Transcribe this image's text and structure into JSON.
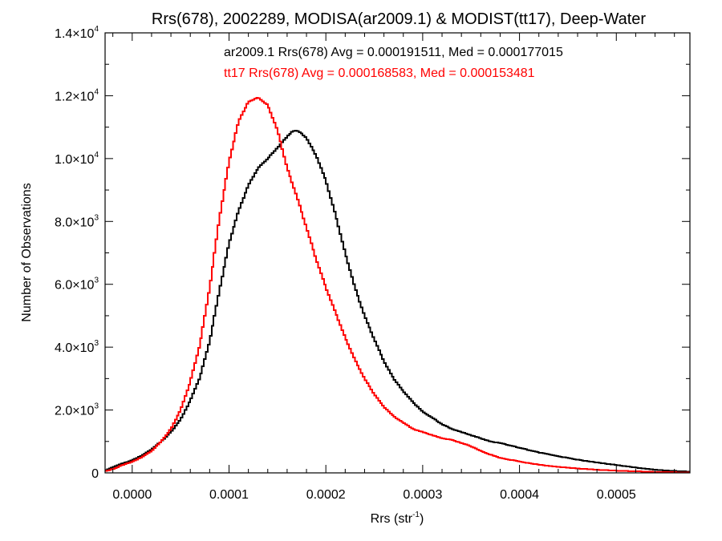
{
  "chart_data": {
    "type": "line",
    "title": "Rrs(678), 2002289, MODISA(ar2009.1) & MODIST(tt17), Deep-Water",
    "xlabel": "Rrs (str",
    "xlabel_sup": "-1",
    "xlabel_end": ")",
    "ylabel": "Number of Observations",
    "xlim": [
      -2.8e-05,
      0.000576
    ],
    "ylim": [
      0,
      14000
    ],
    "x_ticks": [
      {
        "value": 0.0,
        "label": "0.0000"
      },
      {
        "value": 0.0001,
        "label": "0.0001"
      },
      {
        "value": 0.0002,
        "label": "0.0002"
      },
      {
        "value": 0.0003,
        "label": "0.0003"
      },
      {
        "value": 0.0004,
        "label": "0.0004"
      },
      {
        "value": 0.0005,
        "label": "0.0005"
      }
    ],
    "y_ticks": [
      {
        "value": 0,
        "label": "0",
        "sup": ""
      },
      {
        "value": 2000,
        "label": "2.0×10",
        "sup": "3"
      },
      {
        "value": 4000,
        "label": "4.0×10",
        "sup": "3"
      },
      {
        "value": 6000,
        "label": "6.0×10",
        "sup": "3"
      },
      {
        "value": 8000,
        "label": "8.0×10",
        "sup": "3"
      },
      {
        "value": 10000,
        "label": "1.0×10",
        "sup": "4"
      },
      {
        "value": 12000,
        "label": "1.2×10",
        "sup": "4"
      },
      {
        "value": 14000,
        "label": "1.4×10",
        "sup": "4"
      }
    ],
    "x_minor_step": 2e-05,
    "y_minor_step": 1000,
    "grid": false,
    "legend_position": "top",
    "series": [
      {
        "name": "ar2009.1 Rrs(678) Avg = 0.000191511, Med = 0.000177015",
        "color": "#000000",
        "x": [
          -2.8e-05,
          -2e-05,
          -1e-05,
          0.0,
          1e-05,
          2e-05,
          3e-05,
          4e-05,
          5e-05,
          6e-05,
          7e-05,
          8e-05,
          9e-05,
          0.0001,
          0.00011,
          0.00012,
          0.00013,
          0.00014,
          0.00015,
          0.00016,
          0.000165,
          0.00017,
          0.000175,
          0.00018,
          0.00019,
          0.0002,
          0.00021,
          0.00022,
          0.00023,
          0.00024,
          0.00025,
          0.00026,
          0.00027,
          0.00028,
          0.00029,
          0.0003,
          0.00031,
          0.00032,
          0.00033,
          0.00034,
          0.00035,
          0.00036,
          0.00037,
          0.00038,
          0.0004,
          0.00042,
          0.00044,
          0.00046,
          0.00048,
          0.0005,
          0.00052,
          0.00054,
          0.00056,
          0.000576
        ],
        "y": [
          80,
          180,
          300,
          400,
          550,
          750,
          1000,
          1300,
          1700,
          2300,
          3050,
          4200,
          5800,
          7300,
          8350,
          9150,
          9700,
          10000,
          10350,
          10700,
          10850,
          10900,
          10800,
          10650,
          10100,
          9300,
          8200,
          7000,
          5900,
          5000,
          4250,
          3550,
          3000,
          2600,
          2250,
          1950,
          1750,
          1550,
          1400,
          1300,
          1200,
          1100,
          1000,
          950,
          800,
          650,
          530,
          420,
          330,
          250,
          170,
          100,
          60,
          40
        ]
      },
      {
        "name": "tt17 Rrs(678) Avg = 0.000168583, Med = 0.000153481",
        "color": "#ff0000",
        "x": [
          -2.8e-05,
          -2e-05,
          -1e-05,
          0.0,
          1e-05,
          2e-05,
          3e-05,
          4e-05,
          5e-05,
          6e-05,
          7e-05,
          8e-05,
          9e-05,
          0.0001,
          0.00011,
          0.00012,
          0.00013,
          0.00014,
          0.000145,
          0.00015,
          0.00016,
          0.00017,
          0.00018,
          0.00019,
          0.0002,
          0.00021,
          0.00022,
          0.00023,
          0.00024,
          0.00025,
          0.00026,
          0.00027,
          0.00028,
          0.00029,
          0.0003,
          0.00031,
          0.00032,
          0.00033,
          0.00034,
          0.00035,
          0.00036,
          0.00037,
          0.00038,
          0.0004,
          0.00042,
          0.00044,
          0.00046,
          0.00048,
          0.0005,
          0.00052,
          0.00054,
          0.00056,
          0.000576
        ],
        "y": [
          50,
          120,
          250,
          350,
          500,
          700,
          1000,
          1400,
          2000,
          2900,
          4100,
          5900,
          8100,
          9900,
          11200,
          11800,
          11950,
          11700,
          11300,
          10900,
          9700,
          8800,
          7800,
          6800,
          5900,
          5100,
          4300,
          3600,
          3000,
          2500,
          2100,
          1800,
          1600,
          1400,
          1300,
          1200,
          1100,
          1050,
          950,
          850,
          700,
          580,
          480,
          360,
          260,
          190,
          140,
          100,
          70,
          50,
          30,
          20,
          10
        ]
      }
    ]
  }
}
